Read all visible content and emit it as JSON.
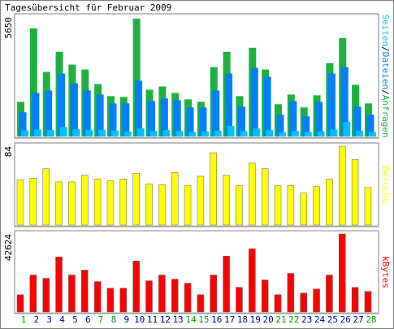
{
  "chart_data": [
    {
      "type": "bar",
      "title": "Tagesübersicht für Februar 2009",
      "ylim": [
        0,
        5650
      ],
      "yticks": [
        5650
      ],
      "legend_separator": "/",
      "series": [
        {
          "name": "Seiten",
          "color": "#00c0ff",
          "values": [
            290,
            330,
            310,
            458,
            340,
            300,
            320,
            280,
            230,
            380,
            260,
            300,
            270,
            220,
            240,
            280,
            496,
            250,
            380,
            300,
            200,
            260,
            210,
            250,
            330,
            687,
            270,
            210
          ]
        },
        {
          "name": "Dateien",
          "color": "#0080ff",
          "values": [
            1145,
            2061,
            2176,
            2977,
            2520,
            2176,
            1985,
            1565,
            1565,
            2634,
            1680,
            1794,
            1718,
            1374,
            1374,
            2176,
            2977,
            1412,
            3245,
            2825,
            1031,
            1680,
            954,
            1641,
            2977,
            3283,
            1412,
            1031
          ]
        },
        {
          "name": "Anfragen",
          "color": "#20b040",
          "values": [
            1640,
            5115,
            3054,
            4008,
            3398,
            3169,
            2481,
            1909,
            1871,
            5574,
            2214,
            2367,
            2061,
            1756,
            1641,
            3283,
            4008,
            1909,
            4199,
            3169,
            1527,
            1985,
            1374,
            1947,
            3474,
            4657,
            2443,
            1565
          ]
        }
      ]
    },
    {
      "type": "bar",
      "ylim": [
        0,
        84
      ],
      "yticks": [
        84
      ],
      "series": [
        {
          "name": "Besuche",
          "color": "#ffff00",
          "values": [
            48,
            50,
            60,
            46,
            46,
            53,
            49,
            47,
            49,
            55,
            44,
            43,
            56,
            42,
            52,
            77,
            53,
            42,
            66,
            60,
            42,
            42,
            34,
            41,
            49,
            84,
            70,
            40
          ]
        }
      ]
    },
    {
      "type": "bar",
      "ylim": [
        0,
        42624
      ],
      "yticks": [
        42624
      ],
      "categories": [
        "1",
        "2",
        "3",
        "4",
        "5",
        "6",
        "7",
        "8",
        "9",
        "10",
        "11",
        "12",
        "13",
        "14",
        "15",
        "16",
        "17",
        "18",
        "19",
        "20",
        "21",
        "22",
        "23",
        "24",
        "25",
        "26",
        "27",
        "28"
      ],
      "category_colors": [
        "#00a000",
        "#0000a0",
        "#0000a0",
        "#0000a0",
        "#0000a0",
        "#0000a0",
        "#00a000",
        "#00a000",
        "#0000a0",
        "#0000a0",
        "#0000a0",
        "#0000a0",
        "#0000a0",
        "#00a000",
        "#00a000",
        "#0000a0",
        "#0000a0",
        "#0000a0",
        "#0000a0",
        "#0000a0",
        "#00a000",
        "#00a000",
        "#0000a0",
        "#0000a0",
        "#0000a0",
        "#0000a0",
        "#0000a0",
        "#00a000"
      ],
      "series": [
        {
          "name": "kBytes",
          "color": "#ff0000",
          "values": [
            9422,
            20190,
            18396,
            30060,
            20190,
            22882,
            16601,
            13012,
            13012,
            27817,
            17050,
            20190,
            17947,
            15704,
            9422,
            20190,
            30509,
            13460,
            34547,
            17498,
            9422,
            21087,
            10319,
            12563,
            20190,
            42624,
            13460,
            11217
          ]
        }
      ]
    }
  ]
}
